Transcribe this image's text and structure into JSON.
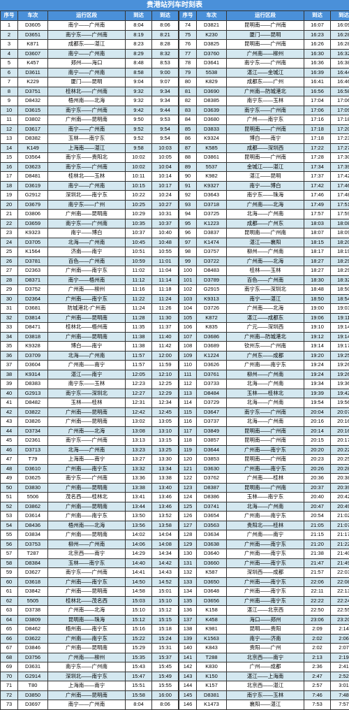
{
  "title": "贵港站列车时刻表",
  "headers": [
    "序号",
    "车次",
    "运行区段",
    "到达",
    "到达"
  ],
  "colors": {
    "header_bg": "#4a90d9",
    "header_fg": "#ffffff",
    "even_bg": "#d4e8f0",
    "odd_bg": "#ffffff",
    "border": "#333333"
  },
  "left": [
    [
      "1",
      "D3605",
      "南宁——广州南",
      "8:04",
      "8:06"
    ],
    [
      "2",
      "D3651",
      "南宁东——广州南",
      "8:19",
      "8:21"
    ],
    [
      "3",
      "K871",
      "成都东——湛江",
      "8:23",
      "8:28"
    ],
    [
      "4",
      "D3607",
      "南宁——广州南",
      "8:29",
      "8:32"
    ],
    [
      "5",
      "K457",
      "郑州——海口",
      "8:48",
      "8:53"
    ],
    [
      "6",
      "D3611",
      "南宁——广州南",
      "8:58",
      "9:00"
    ],
    [
      "7",
      "K229",
      "厦门——昆明",
      "9:04",
      "9:07"
    ],
    [
      "8",
      "D3751",
      "桂林北——广州南",
      "9:32",
      "9:34"
    ],
    [
      "9",
      "D8432",
      "梧州南——北海",
      "9:32",
      "9:34"
    ],
    [
      "10",
      "D3615",
      "南宁东——广州南",
      "9:42",
      "9:44"
    ],
    [
      "11",
      "D3802",
      "广州南——昆明南",
      "9:50",
      "9:53"
    ],
    [
      "12",
      "D3617",
      "南宁——广州南",
      "9:52",
      "9:54"
    ],
    [
      "13",
      "D8382",
      "玉林——南宁东",
      "9:52",
      "9:54"
    ],
    [
      "14",
      "K149",
      "上海南——湛江",
      "9:58",
      "10:03"
    ],
    [
      "15",
      "D3564",
      "南宁东——贵阳北",
      "10:02",
      "10:05"
    ],
    [
      "16",
      "D3623",
      "南宁东——广州南",
      "10:02",
      "10:04"
    ],
    [
      "17",
      "D8481",
      "桂林北——玉林",
      "10:11",
      "10:14"
    ],
    [
      "18",
      "D3619",
      "南宁——广州南",
      "10:15",
      "10:17"
    ],
    [
      "19",
      "G2912",
      "深圳北——南宁东",
      "10:22",
      "10:24"
    ],
    [
      "20",
      "D3679",
      "南宁东——广州",
      "10:25",
      "10:27"
    ],
    [
      "21",
      "D3806",
      "广州南——昆明南",
      "10:29",
      "10:31"
    ],
    [
      "22",
      "D3659",
      "南宁东——广州南",
      "10:35",
      "10:37"
    ],
    [
      "23",
      "K9323",
      "南宁——博白",
      "10:37",
      "10:40"
    ],
    [
      "24",
      "D3705",
      "北海——广州南",
      "10:45",
      "10:48"
    ],
    [
      "25",
      "K1564",
      "济南——南宁",
      "10:51",
      "10:55"
    ],
    [
      "26",
      "D3781",
      "百色——广州南",
      "10:59",
      "11:01"
    ],
    [
      "27",
      "D2363",
      "广州南——南宁东",
      "11:02",
      "11:04"
    ],
    [
      "28",
      "D8371",
      "南宁——梧州南",
      "11:12",
      "11:14"
    ],
    [
      "29",
      "D3752",
      "广州南——柳州",
      "11:16",
      "11:18"
    ],
    [
      "30",
      "D2364",
      "广州南——南宁东",
      "11:22",
      "11:24"
    ],
    [
      "31",
      "D3681",
      "防城港北-广州南",
      "11:24",
      "11:26"
    ],
    [
      "32",
      "D3814",
      "广州南——昆明南",
      "11:28",
      "11:30"
    ],
    [
      "33",
      "D8471",
      "桂林北——梧州南",
      "11:35",
      "11:37"
    ],
    [
      "34",
      "D3818",
      "广州南——昆明南",
      "11:38",
      "11:40"
    ],
    [
      "35",
      "K9328",
      "博白——南宁",
      "11:38",
      "11:42"
    ],
    [
      "36",
      "D3709",
      "北海——广州南",
      "11:57",
      "12:00"
    ],
    [
      "37",
      "D3604",
      "广州南——南宁",
      "11:57",
      "11:59"
    ],
    [
      "38",
      "K9314",
      "湛江——南宁",
      "12:05",
      "12:10"
    ],
    [
      "39",
      "D8383",
      "南宁东——玉林",
      "12:23",
      "12:25"
    ],
    [
      "40",
      "G2913",
      "南宁东——深圳北",
      "12:27",
      "12:29"
    ],
    [
      "41",
      "D8482",
      "玉林——桂林",
      "12:31",
      "12:34"
    ],
    [
      "42",
      "D3822",
      "广州南——昆明南",
      "12:42",
      "12:45"
    ],
    [
      "43",
      "D3826",
      "广州南——昆明南",
      "13:02",
      "13:05"
    ],
    [
      "44",
      "D3734",
      "广州南——北海",
      "13:08",
      "13:10"
    ],
    [
      "45",
      "D2361",
      "南宁东——广州南",
      "13:13",
      "13:15"
    ],
    [
      "46",
      "D3713",
      "北海——广州南",
      "13:23",
      "13:25"
    ],
    [
      "47",
      "T79",
      "上海南——南宁",
      "13:27",
      "13:30"
    ],
    [
      "48",
      "D3610",
      "广州南——南宁东",
      "13:32",
      "13:34"
    ],
    [
      "49",
      "D3625",
      "南宁东——广州南",
      "13:36",
      "13:38"
    ],
    [
      "50",
      "D3830",
      "广州南——昆明南",
      "13:38",
      "13:40"
    ],
    [
      "51",
      "5506",
      "茂名西——桂林北",
      "13:41",
      "13:46"
    ],
    [
      "52",
      "D3862",
      "广州南——昆明南",
      "13:44",
      "13:46"
    ],
    [
      "53",
      "D3614",
      "广州南——南宁东",
      "13:50",
      "13:52"
    ],
    [
      "54",
      "D8436",
      "梧州南——北海",
      "13:56",
      "13:58"
    ],
    [
      "55",
      "D3834",
      "广州南——昆明南",
      "14:02",
      "14:04"
    ],
    [
      "56",
      "D3753",
      "柳州——广州南",
      "14:06",
      "14:08"
    ],
    [
      "57",
      "T287",
      "北京西——南宁",
      "14:29",
      "14:34"
    ],
    [
      "58",
      "D8384",
      "玉林——南宁东",
      "14:40",
      "14:42"
    ],
    [
      "59",
      "D3627",
      "南宁东——广州南",
      "14:41",
      "14:43"
    ],
    [
      "60",
      "D3618",
      "广州南——南宁东",
      "14:50",
      "14:52"
    ],
    [
      "61",
      "D3842",
      "广州南——昆明南",
      "14:58",
      "15:01"
    ],
    [
      "62",
      "5505",
      "桂林北——茂名西",
      "15:03",
      "15:10"
    ],
    [
      "63",
      "D3738",
      "广州南——北海",
      "15:10",
      "15:12"
    ],
    [
      "64",
      "D3809",
      "昆明南——珠海",
      "15:12",
      "15:15"
    ],
    [
      "65",
      "D8462",
      "梧州南——南宁东",
      "15:16",
      "15:18"
    ],
    [
      "66",
      "D3622",
      "广州南——南宁东",
      "15:22",
      "15:24"
    ],
    [
      "67",
      "D3846",
      "广州南——昆明南",
      "15:29",
      "15:31"
    ],
    [
      "68",
      "D3756",
      "广州南——柳州",
      "15:35",
      "15:37"
    ],
    [
      "69",
      "D3631",
      "南宁东——广州南",
      "15:43",
      "15:45"
    ],
    [
      "70",
      "G2914",
      "深圳北——南宁东",
      "15:47",
      "15:49"
    ],
    [
      "71",
      "T80",
      "上海南——南宁",
      "15:51",
      "15:55"
    ],
    [
      "72",
      "D3850",
      "广州南——昆明南",
      "15:58",
      "16:00"
    ],
    [
      "73",
      "D3697",
      "南宁——广州南",
      "8:04",
      "8:06"
    ]
  ],
  "right": [
    [
      "74",
      "D3821",
      "昆明南——广州南",
      "16:07",
      "16:09"
    ],
    [
      "75",
      "K230",
      "厦门——昆明",
      "16:23",
      "16:28"
    ],
    [
      "76",
      "D3825",
      "昆明南——广州南",
      "16:26",
      "16:28"
    ],
    [
      "77",
      "D3760",
      "广州南——柳州",
      "16:30",
      "16:32"
    ],
    [
      "78",
      "D3641",
      "南宁东——广州南",
      "16:36",
      "16:38"
    ],
    [
      "79",
      "5538",
      "湛江——金城江",
      "16:39",
      "16:44"
    ],
    [
      "80",
      "K829",
      "成都东——广州",
      "16:41",
      "16:46"
    ],
    [
      "81",
      "D3690",
      "广州南—防城港北",
      "16:56",
      "16:58"
    ],
    [
      "82",
      "D8385",
      "南宁东——玉林",
      "17:04",
      "17:06"
    ],
    [
      "83",
      "D3639",
      "南宁东——广州南",
      "17:06",
      "17:09"
    ],
    [
      "84",
      "D3680",
      "广州——南宁东",
      "17:16",
      "17:18"
    ],
    [
      "85",
      "D3833",
      "昆明南——广州南",
      "17:18",
      "17:20"
    ],
    [
      "86",
      "K9324",
      "博白——南宁",
      "17:18",
      "17:23"
    ],
    [
      "87",
      "K585",
      "成都——深圳西",
      "17:22",
      "17:27"
    ],
    [
      "88",
      "D3861",
      "昆明南——广州南",
      "17:28",
      "17:30"
    ],
    [
      "89",
      "5537",
      "金城江——湛江",
      "17:34",
      "17:39"
    ],
    [
      "90",
      "K982",
      "湛江——昆明",
      "17:37",
      "17:42"
    ],
    [
      "91",
      "K9327",
      "南宁——博白",
      "17:42",
      "17:46"
    ],
    [
      "92",
      "D3643",
      "南宁东——珠海",
      "17:46",
      "17:48"
    ],
    [
      "93",
      "D3718",
      "广州南——北海",
      "17:49",
      "17:51"
    ],
    [
      "94",
      "D3725",
      "北海——广州南",
      "17:57",
      "17:59"
    ],
    [
      "95",
      "K1223",
      "成都——广州东",
      "18:03",
      "18:08"
    ],
    [
      "96",
      "D3837",
      "昆明南——广州南",
      "18:07",
      "18:09"
    ],
    [
      "97",
      "K1474",
      "湛江——襄阳",
      "18:15",
      "18:20"
    ],
    [
      "98",
      "D3757",
      "柳州——广州南",
      "18:17",
      "18:19"
    ],
    [
      "99",
      "D3722",
      "广州南——北海",
      "18:27",
      "18:29"
    ],
    [
      "100",
      "D8483",
      "桂林——玉林",
      "18:27",
      "18:29"
    ],
    [
      "101",
      "D3789",
      "百色——广州南",
      "18:30",
      "18:32"
    ],
    [
      "102",
      "G2915",
      "南宁东——深圳北",
      "18:48",
      "18:50"
    ],
    [
      "103",
      "K9313",
      "南宁——湛江",
      "18:50",
      "18:54"
    ],
    [
      "104",
      "D3726",
      "广州南——北海",
      "19:00",
      "19:03"
    ],
    [
      "105",
      "K872",
      "湛江——成都东",
      "19:06",
      "19:11"
    ],
    [
      "106",
      "K835",
      "广元——深圳西",
      "19:10",
      "19:14"
    ],
    [
      "107",
      "D3686",
      "广州南—防城港北",
      "19:12",
      "19:14"
    ],
    [
      "108",
      "D3689",
      "钦州东——广州南",
      "19:14",
      "19:17"
    ],
    [
      "109",
      "K1224",
      "广州东——成都",
      "19:20",
      "19:25"
    ],
    [
      "110",
      "D3626",
      "广州南——南宁东",
      "19:24",
      "19:26"
    ],
    [
      "111",
      "D3761",
      "柳州——广州南",
      "19:24",
      "19:26"
    ],
    [
      "112",
      "D3733",
      "北海——广州南",
      "19:34",
      "19:36"
    ],
    [
      "113",
      "D8484",
      "玉林——桂林北",
      "19:39",
      "19:42"
    ],
    [
      "114",
      "D3729",
      "北海——广州南",
      "19:54",
      "19:56"
    ],
    [
      "115",
      "D3647",
      "南宁东——广州南",
      "20:04",
      "20:07"
    ],
    [
      "116",
      "D3737",
      "北海——广州南",
      "20:16",
      "20:16"
    ],
    [
      "117",
      "D3849",
      "昆明南——广州南",
      "20:14",
      "20:16"
    ],
    [
      "118",
      "D3857",
      "昆明南——广州南",
      "20:15",
      "20:17"
    ],
    [
      "119",
      "D3644",
      "广州南——南宁东",
      "20:20",
      "20:22"
    ],
    [
      "120",
      "D3853",
      "昆明南——广州南",
      "20:23",
      "20:25"
    ],
    [
      "121",
      "D3630",
      "广州南——南宁东",
      "20:26",
      "20:28"
    ],
    [
      "122",
      "D3762",
      "广州南——桂林",
      "20:36",
      "20:38"
    ],
    [
      "123",
      "D8387",
      "昆明南——广州南",
      "20:37",
      "20:39"
    ],
    [
      "124",
      "D8386",
      "玉林——南宁东",
      "20:40",
      "20:42"
    ],
    [
      "125",
      "D3741",
      "北海——广州南",
      "20:47",
      "20:49"
    ],
    [
      "126",
      "D3654",
      "广州南——南宁东",
      "20:54",
      "21:02"
    ],
    [
      "127",
      "D3563",
      "贵阳北——桂林",
      "21:05",
      "21:07"
    ],
    [
      "128",
      "D3634",
      "广州南——南宁",
      "21:15",
      "21:17"
    ],
    [
      "129",
      "D3638",
      "广州南——南宁东",
      "21:20",
      "21:22"
    ],
    [
      "130",
      "D3640",
      "广州南——南宁东",
      "21:38",
      "21:40"
    ],
    [
      "131",
      "D3660",
      "广州南——南宁东",
      "21:47",
      "21:49"
    ],
    [
      "132",
      "K587",
      "深圳西——成都",
      "21:57",
      "22:03"
    ],
    [
      "133",
      "D3650",
      "广州南——南宁东",
      "22:06",
      "22:08"
    ],
    [
      "134",
      "D3648",
      "广州南——南宁东",
      "22:11",
      "22:13"
    ],
    [
      "135",
      "D3656",
      "广州南——南宁东",
      "22:22",
      "22:24"
    ],
    [
      "136",
      "K158",
      "湛江——北京西",
      "22:50",
      "22:55"
    ],
    [
      "137",
      "K458",
      "海口——郑州",
      "23:06",
      "23:20"
    ],
    [
      "138",
      "K981",
      "昆明——贵阳",
      "2:09",
      "2:14"
    ],
    [
      "139",
      "K1563",
      "南宁——济南",
      "2:02",
      "2:06"
    ],
    [
      "140",
      "K843",
      "贵阳——广州",
      "2:02",
      "2:07"
    ],
    [
      "141",
      "T288",
      "北京西——南宁",
      "2:13",
      "2:19"
    ],
    [
      "142",
      "K830",
      "广州——成都",
      "2:36",
      "2:41"
    ],
    [
      "143",
      "K150",
      "湛江——上海南",
      "2:47",
      "2:52"
    ],
    [
      "144",
      "K157",
      "北京西——湛江",
      "2:57",
      "3:01"
    ],
    [
      "145",
      "D8381",
      "南宁东——玉林",
      "7:46",
      "7:48"
    ],
    [
      "146",
      "K1473",
      "襄阳——湛江",
      "7:53",
      "7:57"
    ]
  ]
}
